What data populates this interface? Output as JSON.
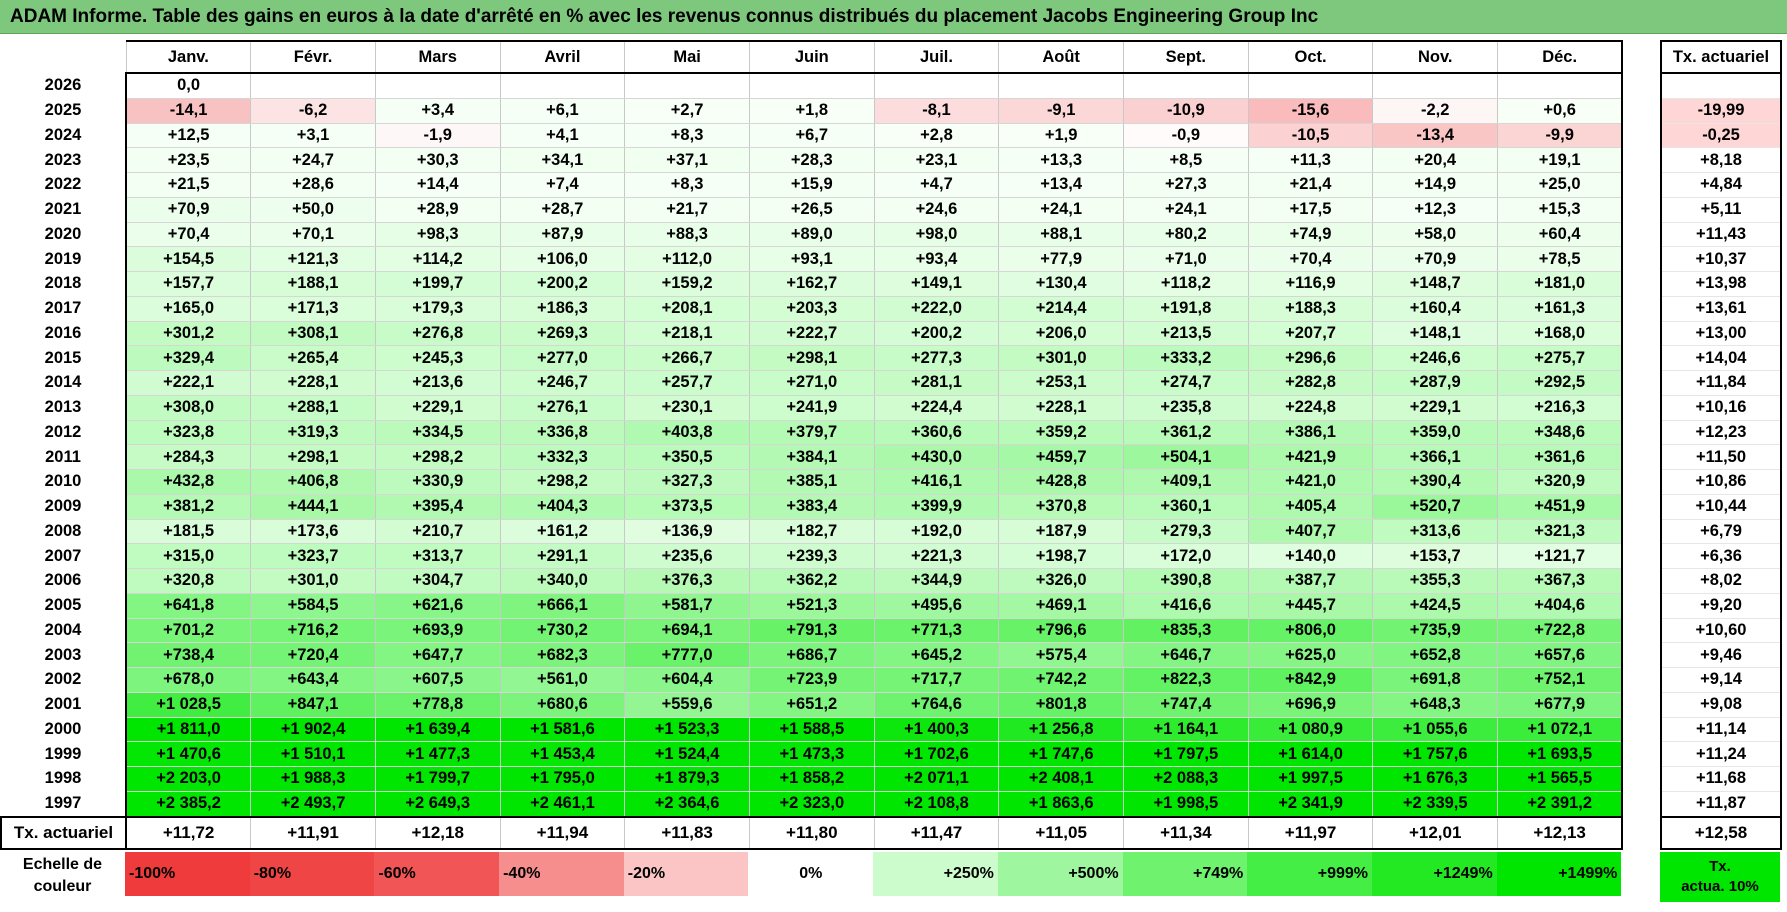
{
  "title": "ADAM Informe. Table des gains en euros à la date d'arrêté en % avec les revenus connus distribués du placement Jacobs Engineering Group Inc",
  "months": [
    "Janv.",
    "Févr.",
    "Mars",
    "Avril",
    "Mai",
    "Juin",
    "Juil.",
    "Août",
    "Sept.",
    "Oct.",
    "Nov.",
    "Déc."
  ],
  "rate_header": "Tx. actuariel",
  "rows": [
    {
      "year": "2026",
      "values": [
        "0,0",
        "",
        "",
        "",
        "",
        "",
        "",
        "",
        "",
        "",
        "",
        ""
      ],
      "rate": ""
    },
    {
      "year": "2025",
      "values": [
        "-14,1",
        "-6,2",
        "+3,4",
        "+6,1",
        "+2,7",
        "+1,8",
        "-8,1",
        "-9,1",
        "-10,9",
        "-15,6",
        "-2,2",
        "+0,6"
      ],
      "rate": "-19,99"
    },
    {
      "year": "2024",
      "values": [
        "+12,5",
        "+3,1",
        "-1,9",
        "+4,1",
        "+8,3",
        "+6,7",
        "+2,8",
        "+1,9",
        "-0,9",
        "-10,5",
        "-13,4",
        "-9,9"
      ],
      "rate": "-0,25"
    },
    {
      "year": "2023",
      "values": [
        "+23,5",
        "+24,7",
        "+30,3",
        "+34,1",
        "+37,1",
        "+28,3",
        "+23,1",
        "+13,3",
        "+8,5",
        "+11,3",
        "+20,4",
        "+19,1"
      ],
      "rate": "+8,18"
    },
    {
      "year": "2022",
      "values": [
        "+21,5",
        "+28,6",
        "+14,4",
        "+7,4",
        "+8,3",
        "+15,9",
        "+4,7",
        "+13,4",
        "+27,3",
        "+21,4",
        "+14,9",
        "+25,0"
      ],
      "rate": "+4,84"
    },
    {
      "year": "2021",
      "values": [
        "+70,9",
        "+50,0",
        "+28,9",
        "+28,7",
        "+21,7",
        "+26,5",
        "+24,6",
        "+24,1",
        "+24,1",
        "+17,5",
        "+12,3",
        "+15,3"
      ],
      "rate": "+5,11"
    },
    {
      "year": "2020",
      "values": [
        "+70,4",
        "+70,1",
        "+98,3",
        "+87,9",
        "+88,3",
        "+89,0",
        "+98,0",
        "+88,1",
        "+80,2",
        "+74,9",
        "+58,0",
        "+60,4"
      ],
      "rate": "+11,43"
    },
    {
      "year": "2019",
      "values": [
        "+154,5",
        "+121,3",
        "+114,2",
        "+106,0",
        "+112,0",
        "+93,1",
        "+93,4",
        "+77,9",
        "+71,0",
        "+70,4",
        "+70,9",
        "+78,5"
      ],
      "rate": "+10,37"
    },
    {
      "year": "2018",
      "values": [
        "+157,7",
        "+188,1",
        "+199,7",
        "+200,2",
        "+159,2",
        "+162,7",
        "+149,1",
        "+130,4",
        "+118,2",
        "+116,9",
        "+148,7",
        "+181,0"
      ],
      "rate": "+13,98"
    },
    {
      "year": "2017",
      "values": [
        "+165,0",
        "+171,3",
        "+179,3",
        "+186,3",
        "+208,1",
        "+203,3",
        "+222,0",
        "+214,4",
        "+191,8",
        "+188,3",
        "+160,4",
        "+161,3"
      ],
      "rate": "+13,61"
    },
    {
      "year": "2016",
      "values": [
        "+301,2",
        "+308,1",
        "+276,8",
        "+269,3",
        "+218,1",
        "+222,7",
        "+200,2",
        "+206,0",
        "+213,5",
        "+207,7",
        "+148,1",
        "+168,0"
      ],
      "rate": "+13,00"
    },
    {
      "year": "2015",
      "values": [
        "+329,4",
        "+265,4",
        "+245,3",
        "+277,0",
        "+266,7",
        "+298,1",
        "+277,3",
        "+301,0",
        "+333,2",
        "+296,6",
        "+246,6",
        "+275,7"
      ],
      "rate": "+14,04"
    },
    {
      "year": "2014",
      "values": [
        "+222,1",
        "+228,1",
        "+213,6",
        "+246,7",
        "+257,7",
        "+271,0",
        "+281,1",
        "+253,1",
        "+274,7",
        "+282,8",
        "+287,9",
        "+292,5"
      ],
      "rate": "+11,84"
    },
    {
      "year": "2013",
      "values": [
        "+308,0",
        "+288,1",
        "+229,1",
        "+276,1",
        "+230,1",
        "+241,9",
        "+224,4",
        "+228,1",
        "+235,8",
        "+224,8",
        "+229,1",
        "+216,3"
      ],
      "rate": "+10,16"
    },
    {
      "year": "2012",
      "values": [
        "+323,8",
        "+319,3",
        "+334,5",
        "+336,8",
        "+403,8",
        "+379,7",
        "+360,6",
        "+359,2",
        "+361,2",
        "+386,1",
        "+359,0",
        "+348,6"
      ],
      "rate": "+12,23"
    },
    {
      "year": "2011",
      "values": [
        "+284,3",
        "+298,1",
        "+298,2",
        "+332,3",
        "+350,5",
        "+384,1",
        "+430,0",
        "+459,7",
        "+504,1",
        "+421,9",
        "+366,1",
        "+361,6"
      ],
      "rate": "+11,50"
    },
    {
      "year": "2010",
      "values": [
        "+432,8",
        "+406,8",
        "+330,9",
        "+298,2",
        "+327,3",
        "+385,1",
        "+416,1",
        "+428,8",
        "+409,1",
        "+421,0",
        "+390,4",
        "+320,9"
      ],
      "rate": "+10,86"
    },
    {
      "year": "2009",
      "values": [
        "+381,2",
        "+444,1",
        "+395,4",
        "+404,3",
        "+373,5",
        "+383,4",
        "+399,9",
        "+370,8",
        "+360,1",
        "+405,4",
        "+520,7",
        "+451,9"
      ],
      "rate": "+10,44"
    },
    {
      "year": "2008",
      "values": [
        "+181,5",
        "+173,6",
        "+210,7",
        "+161,2",
        "+136,9",
        "+182,7",
        "+192,0",
        "+187,9",
        "+279,3",
        "+407,7",
        "+313,6",
        "+321,3"
      ],
      "rate": "+6,79"
    },
    {
      "year": "2007",
      "values": [
        "+315,0",
        "+323,7",
        "+313,7",
        "+291,1",
        "+235,6",
        "+239,3",
        "+221,3",
        "+198,7",
        "+172,0",
        "+140,0",
        "+153,7",
        "+121,7"
      ],
      "rate": "+6,36"
    },
    {
      "year": "2006",
      "values": [
        "+320,8",
        "+301,0",
        "+304,7",
        "+340,0",
        "+376,3",
        "+362,2",
        "+344,9",
        "+326,0",
        "+390,8",
        "+387,7",
        "+355,3",
        "+367,3"
      ],
      "rate": "+8,02"
    },
    {
      "year": "2005",
      "values": [
        "+641,8",
        "+584,5",
        "+621,6",
        "+666,1",
        "+581,7",
        "+521,3",
        "+495,6",
        "+469,1",
        "+416,6",
        "+445,7",
        "+424,5",
        "+404,6"
      ],
      "rate": "+9,20"
    },
    {
      "year": "2004",
      "values": [
        "+701,2",
        "+716,2",
        "+693,9",
        "+730,2",
        "+694,1",
        "+791,3",
        "+771,3",
        "+796,6",
        "+835,3",
        "+806,0",
        "+735,9",
        "+722,8"
      ],
      "rate": "+10,60"
    },
    {
      "year": "2003",
      "values": [
        "+738,4",
        "+720,4",
        "+647,7",
        "+682,3",
        "+777,0",
        "+686,7",
        "+645,2",
        "+575,4",
        "+646,7",
        "+625,0",
        "+652,8",
        "+657,6"
      ],
      "rate": "+9,46"
    },
    {
      "year": "2002",
      "values": [
        "+678,0",
        "+643,4",
        "+607,5",
        "+561,0",
        "+604,4",
        "+723,9",
        "+717,7",
        "+742,2",
        "+822,3",
        "+842,9",
        "+691,8",
        "+752,1"
      ],
      "rate": "+9,14"
    },
    {
      "year": "2001",
      "values": [
        "+1 028,5",
        "+847,1",
        "+778,8",
        "+680,6",
        "+559,6",
        "+651,2",
        "+764,6",
        "+801,8",
        "+747,4",
        "+696,9",
        "+648,3",
        "+677,9"
      ],
      "rate": "+9,08"
    },
    {
      "year": "2000",
      "values": [
        "+1 811,0",
        "+1 902,4",
        "+1 639,4",
        "+1 581,6",
        "+1 523,3",
        "+1 588,5",
        "+1 400,3",
        "+1 256,8",
        "+1 164,1",
        "+1 080,9",
        "+1 055,6",
        "+1 072,1"
      ],
      "rate": "+11,14"
    },
    {
      "year": "1999",
      "values": [
        "+1 470,6",
        "+1 510,1",
        "+1 477,3",
        "+1 453,4",
        "+1 524,4",
        "+1 473,3",
        "+1 702,6",
        "+1 747,6",
        "+1 797,5",
        "+1 614,0",
        "+1 757,6",
        "+1 693,5"
      ],
      "rate": "+11,24"
    },
    {
      "year": "1998",
      "values": [
        "+2 203,0",
        "+1 988,3",
        "+1 799,7",
        "+1 795,0",
        "+1 879,3",
        "+1 858,2",
        "+2 071,1",
        "+2 408,1",
        "+2 088,3",
        "+1 997,5",
        "+1 676,3",
        "+1 565,5"
      ],
      "rate": "+11,68"
    },
    {
      "year": "1997",
      "values": [
        "+2 385,2",
        "+2 493,7",
        "+2 649,3",
        "+2 461,1",
        "+2 364,6",
        "+2 323,0",
        "+2 108,8",
        "+1 863,6",
        "+1 998,5",
        "+2 341,9",
        "+2 339,5",
        "+2 391,2"
      ],
      "rate": "+11,87"
    }
  ],
  "footer": {
    "label": "Tx. actuariel",
    "values": [
      "+11,72",
      "+11,91",
      "+12,18",
      "+11,94",
      "+11,83",
      "+11,80",
      "+11,47",
      "+11,05",
      "+11,34",
      "+11,97",
      "+12,01",
      "+12,13"
    ],
    "overall": "+12,58"
  },
  "legend": {
    "label_line1": "Echelle de",
    "label_line2": "couleur",
    "items": [
      {
        "text": "-100%",
        "color": "#ef3b3b",
        "align": "left"
      },
      {
        "text": "-80%",
        "color": "#f04545",
        "align": "left"
      },
      {
        "text": "-60%",
        "color": "#f25555",
        "align": "left"
      },
      {
        "text": "-40%",
        "color": "#f78e8e",
        "align": "left"
      },
      {
        "text": "-20%",
        "color": "#fbc5c5",
        "align": "left"
      },
      {
        "text": "0%",
        "color": "#ffffff",
        "align": "center"
      },
      {
        "text": "+250%",
        "color": "#ccfccc",
        "align": "right"
      },
      {
        "text": "+500%",
        "color": "#9ef79e",
        "align": "right"
      },
      {
        "text": "+749%",
        "color": "#6ff36f",
        "align": "right"
      },
      {
        "text": "+999%",
        "color": "#45ee45",
        "align": "right"
      },
      {
        "text": "+1249%",
        "color": "#22e922",
        "align": "right"
      },
      {
        "text": "+1499%",
        "color": "#00e600",
        "align": "right"
      }
    ],
    "note_line1": "Tx.",
    "note_line2": "actua. 10%",
    "note_color": "#00e600"
  },
  "colors": {
    "title_bar": "#7ec87e",
    "rate_highlight": "#ffd6d6"
  }
}
